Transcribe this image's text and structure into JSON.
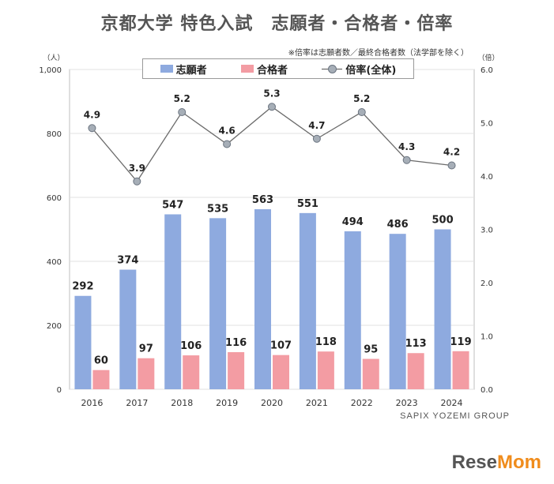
{
  "title": "京都大学 特色入試　志願者・合格者・倍率",
  "note": "※倍率は志願者数／最終合格者数（法学部を除く）",
  "watermark": "SAPIX YOZEMI GROUP",
  "brand": {
    "part1": "Rese",
    "part2": "Mom"
  },
  "colors": {
    "applicants": "#8eaadf",
    "passers": "#f39ca3",
    "ratio_marker": "#a6aeb7",
    "ratio_line": "#6b6b6b"
  },
  "chart_data": {
    "type": "bar",
    "categories": [
      "2016",
      "2017",
      "2018",
      "2019",
      "2020",
      "2021",
      "2022",
      "2023",
      "2024"
    ],
    "series": [
      {
        "name": "志願者",
        "type": "bar",
        "axis": "left",
        "values": [
          292,
          374,
          547,
          535,
          563,
          551,
          494,
          486,
          500
        ]
      },
      {
        "name": "合格者",
        "type": "bar",
        "axis": "left",
        "values": [
          60,
          97,
          106,
          116,
          107,
          118,
          95,
          113,
          119
        ]
      },
      {
        "name": "倍率(全体)",
        "type": "line",
        "axis": "right",
        "values": [
          4.9,
          3.9,
          5.2,
          4.6,
          5.3,
          4.7,
          5.2,
          4.3,
          4.2
        ]
      }
    ],
    "left_axis": {
      "unit": "（人）",
      "min": 0,
      "max": 1000,
      "ticks": [
        0,
        200,
        400,
        600,
        800,
        1000
      ],
      "tick_labels": [
        "0",
        "200",
        "400",
        "600",
        "800",
        "1,000"
      ]
    },
    "right_axis": {
      "unit": "（倍）",
      "min": 0,
      "max": 6,
      "ticks": [
        0,
        1,
        2,
        3,
        4,
        5,
        6
      ],
      "tick_labels": [
        "0.0",
        "1.0",
        "2.0",
        "3.0",
        "4.0",
        "5.0",
        "6.0"
      ]
    },
    "grid": true,
    "legend_position": "top-center"
  }
}
